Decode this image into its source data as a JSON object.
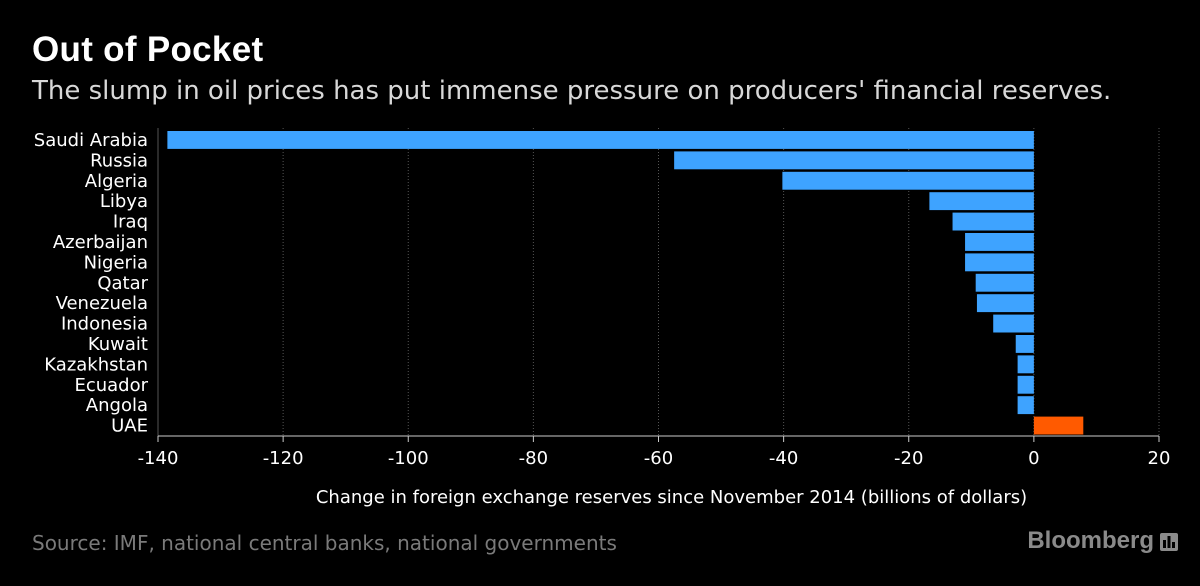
{
  "header": {
    "title": "Out of Pocket",
    "subtitle": "The slump in oil prices has put immense pressure on producers' financial reserves."
  },
  "footer": {
    "source": "Source: IMF, national central banks, national governments",
    "brand": "Bloomberg"
  },
  "colors": {
    "negative": "#3ea3ff",
    "positive": "#ff5a00",
    "grid": "#555555",
    "text": "#ffffff"
  },
  "chart_data": {
    "type": "bar",
    "orientation": "horizontal",
    "title": "Out of Pocket",
    "xlabel": "Change in foreign exchange reserves since November 2014 (billions of dollars)",
    "ylabel": "",
    "xlim": [
      -140,
      20
    ],
    "xticks": [
      -140,
      -120,
      -100,
      -80,
      -60,
      -40,
      -20,
      0,
      20
    ],
    "grid": true,
    "categories": [
      "Saudi Arabia",
      "Russia",
      "Algeria",
      "Libya",
      "Iraq",
      "Azerbaijan",
      "Nigeria",
      "Qatar",
      "Venezuela",
      "Indonesia",
      "Kuwait",
      "Kazakhstan",
      "Ecuador",
      "Angola",
      "UAE"
    ],
    "values": [
      -138.5,
      -57.5,
      -40.2,
      -16.7,
      -13.0,
      -11.0,
      -11.0,
      -9.3,
      -9.1,
      -6.5,
      -2.9,
      -2.6,
      -2.6,
      -2.6,
      7.9
    ]
  }
}
